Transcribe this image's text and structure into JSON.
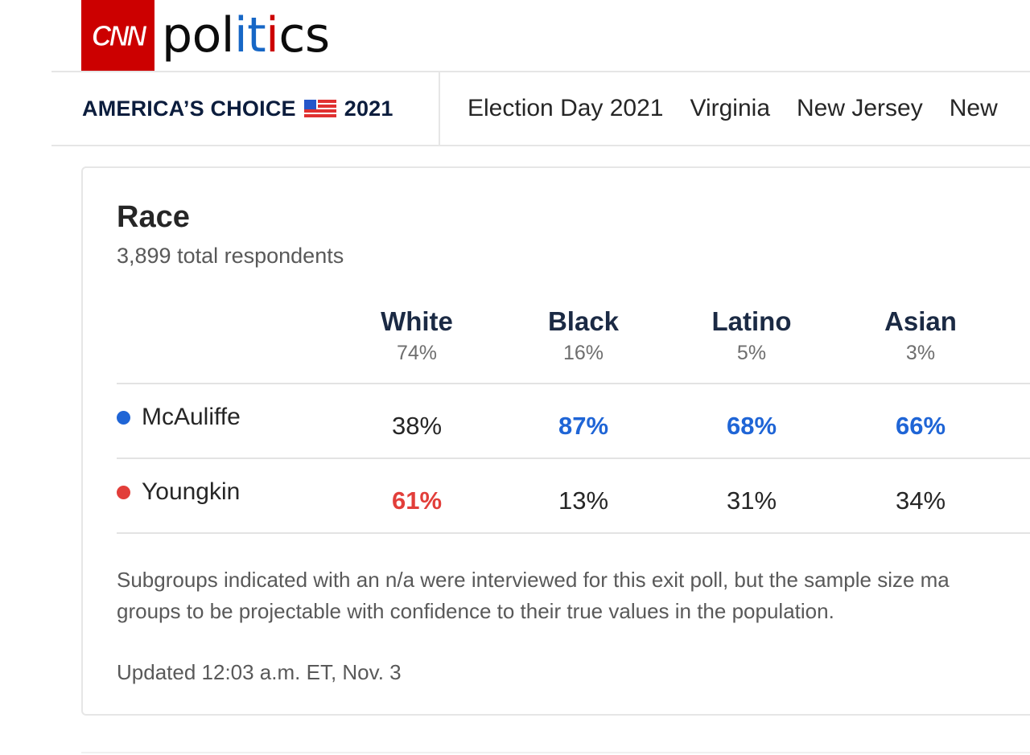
{
  "header": {
    "logo_text": "CNN",
    "site_name_parts": [
      "pol",
      "i",
      "t",
      "i",
      "cs"
    ]
  },
  "nav": {
    "brand_left": "AMERICA’S CHOICE",
    "brand_right": "2021",
    "links": [
      "Election Day 2021",
      "Virginia",
      "New Jersey",
      "New"
    ]
  },
  "card": {
    "title": "Race",
    "subtitle": "3,899 total respondents",
    "columns": [
      {
        "name": "White",
        "pct": "74%"
      },
      {
        "name": "Black",
        "pct": "16%"
      },
      {
        "name": "Latino",
        "pct": "5%"
      },
      {
        "name": "Asian",
        "pct": "3%"
      }
    ],
    "rows": [
      {
        "candidate": "McAuliffe",
        "color": "#1f65d6",
        "values": [
          "38%",
          "87%",
          "68%",
          "66%"
        ]
      },
      {
        "candidate": "Youngkin",
        "color": "#e23e3a",
        "values": [
          "61%",
          "13%",
          "31%",
          "34%"
        ]
      }
    ],
    "note_line1": "Subgroups indicated with an n/a were interviewed for this exit poll, but the sample size ma",
    "note_line2": "groups to be projectable with confidence to their true values in the population.",
    "updated": "Updated 12:03 a.m. ET, Nov. 3"
  }
}
